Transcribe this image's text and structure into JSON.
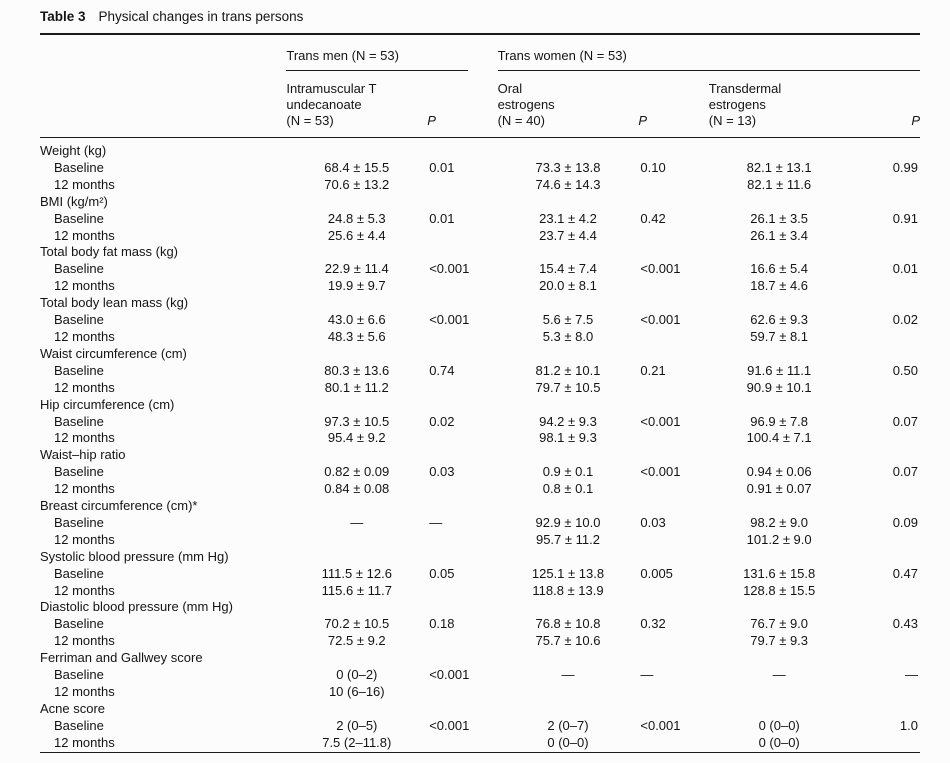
{
  "table": {
    "label": "Table 3",
    "title": "Physical changes in trans persons",
    "groups": [
      {
        "label": "Trans men (N = 53)"
      },
      {
        "label": "Trans women (N = 53)"
      }
    ],
    "columns": [
      {
        "header": "Intramuscular T\nundecanoate\n(N = 53)",
        "type": "value"
      },
      {
        "header": "P",
        "type": "p"
      },
      {
        "header": "Oral\nestrogens\n(N = 40)",
        "type": "value"
      },
      {
        "header": "P",
        "type": "p"
      },
      {
        "header": "Transdermal\nestrogens\n(N = 13)",
        "type": "value"
      },
      {
        "header": "P",
        "type": "p"
      }
    ],
    "rows": [
      {
        "type": "section",
        "label": "Weight (kg)"
      },
      {
        "type": "data",
        "label": "Baseline",
        "values": [
          "68.4 ± 15.5",
          "0.01",
          "73.3 ± 13.8",
          "0.10",
          "82.1 ± 13.1",
          "0.99"
        ]
      },
      {
        "type": "data",
        "label": "12 months",
        "values": [
          "70.6 ± 13.2",
          "",
          "74.6 ± 14.3",
          "",
          "82.1 ± 11.6",
          ""
        ]
      },
      {
        "type": "section",
        "label": "BMI (kg/m²)"
      },
      {
        "type": "data",
        "label": "Baseline",
        "values": [
          "24.8 ± 5.3",
          "0.01",
          "23.1 ± 4.2",
          "0.42",
          "26.1 ± 3.5",
          "0.91"
        ]
      },
      {
        "type": "data",
        "label": "12 months",
        "values": [
          "25.6 ± 4.4",
          "",
          "23.7 ± 4.4",
          "",
          "26.1 ± 3.4",
          ""
        ]
      },
      {
        "type": "section",
        "label": "Total body fat mass (kg)"
      },
      {
        "type": "data",
        "label": "Baseline",
        "values": [
          "22.9 ± 11.4",
          "<0.001",
          "15.4 ± 7.4",
          "<0.001",
          "16.6 ± 5.4",
          "0.01"
        ]
      },
      {
        "type": "data",
        "label": "12 months",
        "values": [
          "19.9 ± 9.7",
          "",
          "20.0 ± 8.1",
          "",
          "18.7 ± 4.6",
          ""
        ]
      },
      {
        "type": "section",
        "label": "Total body lean mass (kg)"
      },
      {
        "type": "data",
        "label": "Baseline",
        "values": [
          "43.0 ± 6.6",
          "<0.001",
          "5.6 ± 7.5",
          "<0.001",
          "62.6 ± 9.3",
          "0.02"
        ]
      },
      {
        "type": "data",
        "label": "12 months",
        "values": [
          "48.3 ± 5.6",
          "",
          "5.3 ± 8.0",
          "",
          "59.7 ± 8.1",
          ""
        ]
      },
      {
        "type": "section",
        "label": "Waist circumference (cm)"
      },
      {
        "type": "data",
        "label": "Baseline",
        "values": [
          "80.3 ± 13.6",
          "0.74",
          "81.2 ± 10.1",
          "0.21",
          "91.6 ± 11.1",
          "0.50"
        ]
      },
      {
        "type": "data",
        "label": "12 months",
        "values": [
          "80.1 ± 11.2",
          "",
          "79.7 ± 10.5",
          "",
          "90.9 ± 10.1",
          ""
        ]
      },
      {
        "type": "section",
        "label": "Hip circumference (cm)"
      },
      {
        "type": "data",
        "label": "Baseline",
        "values": [
          "97.3 ± 10.5",
          "0.02",
          "94.2 ± 9.3",
          "<0.001",
          "96.9 ± 7.8",
          "0.07"
        ]
      },
      {
        "type": "data",
        "label": "12 months",
        "values": [
          "95.4 ± 9.2",
          "",
          "98.1 ± 9.3",
          "",
          "100.4 ± 7.1",
          ""
        ]
      },
      {
        "type": "section",
        "label": "Waist–hip ratio"
      },
      {
        "type": "data",
        "label": "Baseline",
        "values": [
          "0.82 ± 0.09",
          "0.03",
          "0.9 ± 0.1",
          "<0.001",
          "0.94 ± 0.06",
          "0.07"
        ]
      },
      {
        "type": "data",
        "label": "12 months",
        "values": [
          "0.84 ± 0.08",
          "",
          "0.8 ± 0.1",
          "",
          "0.91 ± 0.07",
          ""
        ]
      },
      {
        "type": "section",
        "label": "Breast circumference (cm)*"
      },
      {
        "type": "data",
        "label": "Baseline",
        "values": [
          "—",
          "—",
          "92.9 ± 10.0",
          "0.03",
          "98.2 ± 9.0",
          "0.09"
        ]
      },
      {
        "type": "data",
        "label": "12 months",
        "values": [
          "",
          "",
          "95.7 ± 11.2",
          "",
          "101.2 ± 9.0",
          ""
        ]
      },
      {
        "type": "section",
        "label": "Systolic blood pressure (mm Hg)"
      },
      {
        "type": "data",
        "label": "Baseline",
        "values": [
          "111.5 ± 12.6",
          "0.05",
          "125.1 ± 13.8",
          "0.005",
          "131.6 ± 15.8",
          "0.47"
        ]
      },
      {
        "type": "data",
        "label": "12 months",
        "values": [
          "115.6 ± 11.7",
          "",
          "118.8 ± 13.9",
          "",
          "128.8 ± 15.5",
          ""
        ]
      },
      {
        "type": "section",
        "label": "Diastolic blood pressure (mm Hg)"
      },
      {
        "type": "data",
        "label": "Baseline",
        "values": [
          "70.2 ± 10.5",
          "0.18",
          "76.8 ± 10.8",
          "0.32",
          "76.7 ± 9.0",
          "0.43"
        ]
      },
      {
        "type": "data",
        "label": "12 months",
        "values": [
          "72.5 ± 9.2",
          "",
          "75.7 ± 10.6",
          "",
          "79.7 ± 9.3",
          ""
        ]
      },
      {
        "type": "section",
        "label": "Ferriman and Gallwey score"
      },
      {
        "type": "data",
        "label": "Baseline",
        "values": [
          "0 (0–2)",
          "<0.001",
          "—",
          "—",
          "—",
          "—"
        ]
      },
      {
        "type": "data",
        "label": "12 months",
        "values": [
          "10 (6–16)",
          "",
          "",
          "",
          "",
          ""
        ]
      },
      {
        "type": "section",
        "label": "Acne score"
      },
      {
        "type": "data",
        "label": "Baseline",
        "values": [
          "2 (0–5)",
          "<0.001",
          "2 (0–7)",
          "<0.001",
          "0 (0–0)",
          "1.0"
        ]
      },
      {
        "type": "data",
        "label": "12 months",
        "values": [
          "7.5 (2–11.8)",
          "",
          "0 (0–0)",
          "",
          "0 (0–0)",
          ""
        ]
      }
    ]
  }
}
